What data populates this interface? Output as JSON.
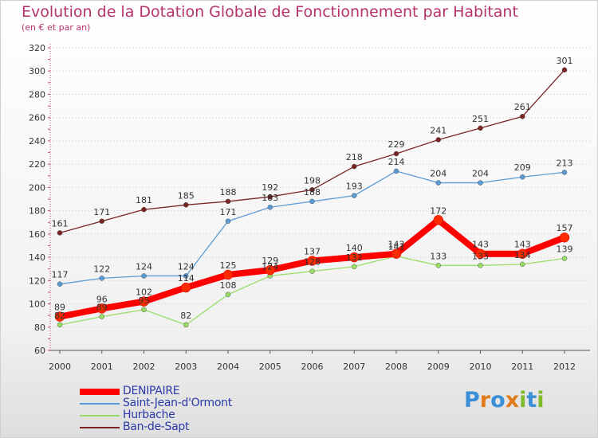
{
  "chart_data": {
    "type": "line",
    "title": "Evolution de la Dotation Globale de Fonctionnement par Habitant",
    "subtitle": "(en € et par an)",
    "x": [
      "2000",
      "2001",
      "2002",
      "2003",
      "2004",
      "2005",
      "2006",
      "2007",
      "2008",
      "2009",
      "2010",
      "2011",
      "2012"
    ],
    "ylim": [
      60,
      320
    ],
    "yticks": [
      60,
      80,
      100,
      120,
      140,
      160,
      180,
      200,
      220,
      240,
      260,
      280,
      300,
      320
    ],
    "grid": "horizontal dotted",
    "legend_position": "bottom-left",
    "series": [
      {
        "name": "DENIPAIRE",
        "color": "#ff0000",
        "values": [
          89,
          96,
          102,
          114,
          125,
          129,
          137,
          140,
          143,
          172,
          143,
          143,
          157
        ]
      },
      {
        "name": "Saint-Jean-d'Ormont",
        "color": "#5b9bd5",
        "values": [
          117,
          122,
          124,
          124,
          171,
          183,
          188,
          193,
          214,
          204,
          204,
          209,
          213
        ]
      },
      {
        "name": "Hurbache",
        "color": "#99dd66",
        "values": [
          82,
          89,
          95,
          82,
          108,
          124,
          128,
          132,
          141,
          133,
          133,
          134,
          139
        ]
      },
      {
        "name": "Ban-de-Sapt",
        "color": "#7a2424",
        "values": [
          161,
          171,
          181,
          185,
          188,
          192,
          198,
          218,
          229,
          241,
          251,
          261,
          301
        ]
      }
    ]
  },
  "logo": {
    "letters": [
      "P",
      "r",
      "o",
      "x",
      "i",
      "t",
      "i"
    ],
    "colors": [
      "#3a8fd6",
      "#e07a1a",
      "#3a8fd6",
      "#e07a1a",
      "#7dbb2a",
      "#3a8fd6",
      "#7dbb2a"
    ]
  }
}
